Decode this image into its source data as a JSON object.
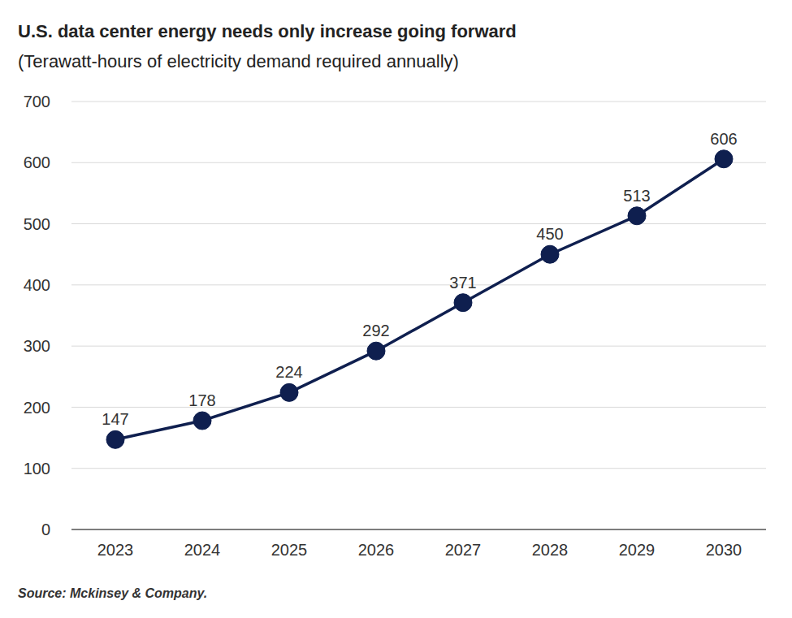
{
  "chart_data": {
    "type": "line",
    "title": "U.S. data center energy needs only increase going forward",
    "subtitle": "(Terawatt-hours of electricity demand required annually)",
    "source": "Source: Mckinsey & Company.",
    "categories": [
      "2023",
      "2024",
      "2025",
      "2026",
      "2027",
      "2028",
      "2029",
      "2030"
    ],
    "values": [
      147,
      178,
      224,
      292,
      371,
      450,
      513,
      606
    ],
    "color": "#0f1f4f",
    "ylim": [
      0,
      700
    ],
    "yticks": [
      0,
      100,
      200,
      300,
      400,
      500,
      600,
      700
    ],
    "grid": true,
    "data_labels": true,
    "marker": "circle"
  }
}
